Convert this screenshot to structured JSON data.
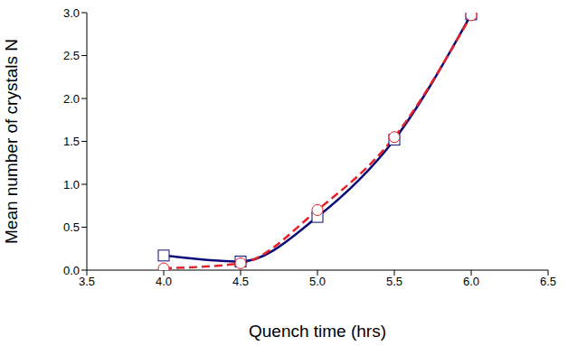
{
  "chart_data": {
    "type": "line",
    "x_label": "Quench time (hrs)",
    "y_label": "Mean number of crystals N",
    "x": [
      4.0,
      4.5,
      5.0,
      5.5,
      6.0
    ],
    "series": [
      {
        "color": "#0a0a78",
        "marker": "square",
        "line_style": "solid",
        "values": [
          0.17,
          0.1,
          0.62,
          1.52,
          2.98
        ]
      },
      {
        "color": "#e8202a",
        "marker": "circle",
        "line_style": "dashed",
        "values": [
          0.02,
          0.08,
          0.7,
          1.55,
          2.97
        ]
      }
    ],
    "xlim": [
      3.5,
      6.5
    ],
    "xticks": [
      3.5,
      {
        "value": 4,
        "label": "4.0"
      },
      4.5,
      {
        "value": 5,
        "label": "5.0"
      },
      5.5,
      {
        "value": 6,
        "label": "6.0"
      },
      6.5
    ],
    "ylim": [
      0,
      3
    ],
    "yticks": [
      {
        "value": 0,
        "label": "0.0"
      },
      0.5,
      {
        "value": 1,
        "label": "1.0"
      },
      1.5,
      {
        "value": 2,
        "label": "2.0"
      },
      2.5,
      {
        "value": 3,
        "label": "3.0"
      }
    ],
    "grid": false
  }
}
